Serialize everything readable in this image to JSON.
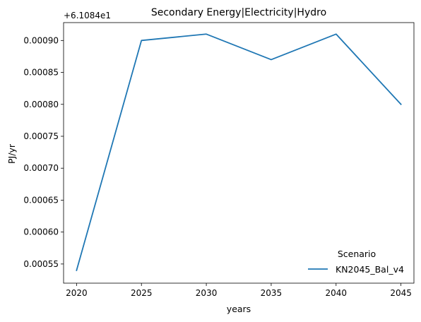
{
  "chart_data": {
    "type": "line",
    "title": "Secondary Energy|Electricity|Hydro",
    "xlabel": "years",
    "ylabel": "PJ/yr",
    "offset_label": "+6.1084e1",
    "x": [
      2020,
      2025,
      2030,
      2035,
      2040,
      2045
    ],
    "x_ticks": [
      "2020",
      "2025",
      "2030",
      "2035",
      "2040",
      "2045"
    ],
    "y_ticks": [
      "0.00055",
      "0.00060",
      "0.00065",
      "0.00070",
      "0.00075",
      "0.00080",
      "0.00085",
      "0.00090"
    ],
    "y_tick_values": [
      0.00055,
      0.0006,
      0.00065,
      0.0007,
      0.00075,
      0.0008,
      0.00085,
      0.0009
    ],
    "xlim": [
      2019,
      2046
    ],
    "ylim": [
      0.00052,
      0.000928
    ],
    "grid": false,
    "legend": {
      "title": "Scenario",
      "placement": "lower-right"
    },
    "series": [
      {
        "name": "KN2045_Bal_v4",
        "color": "#1f77b4",
        "values": [
          0.00054,
          0.0009,
          0.00091,
          0.00087,
          0.00091,
          0.0008
        ]
      }
    ]
  }
}
